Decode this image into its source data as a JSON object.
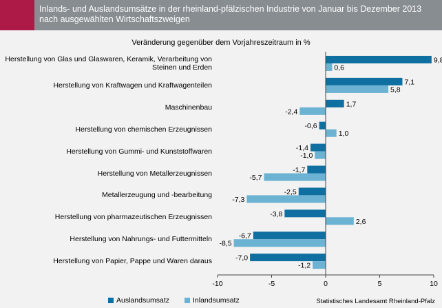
{
  "header": {
    "title_line1": "Inlands- und Auslandsumsätze in der rheinland-pfälzischen Industrie von Januar bis  Dezember 2013",
    "title_line2": "nach ausgewählten Wirtschaftszweigen"
  },
  "chart_data": {
    "type": "bar",
    "orientation": "horizontal",
    "title": "Inlands- und Auslandsumsätze in der rheinland-pfälzischen Industrie von Januar bis  Dezember 2013 nach ausgewählten Wirtschaftszweigen",
    "subtitle": "Veränderung gegenüber dem Vorjahreszeitraum  in %",
    "categories": [
      "Herstellung von Glas und Glaswaren, Keramik, Verarbeitung von Steinen und Erden",
      "Herstellung von Kraftwagen und Kraftwagenteilen",
      "Maschinenbau",
      "Herstellung von chemischen Erzeugnissen",
      "Herstellung von Gummi- und Kunststoffwaren",
      "Herstellung von Metallerzeugnissen",
      "Metallerzeugung und -bearbeitung",
      "Herstellung von pharmazeutischen Erzeugnissen",
      "Herstellung von Nahrungs- und Futtermitteln",
      "Herstellung von Papier, Pappe und Waren daraus"
    ],
    "series": [
      {
        "name": "Auslandsumsatz",
        "color": "#0f6fa0",
        "values": [
          9.8,
          7.1,
          1.7,
          -0.6,
          -1.4,
          -1.7,
          -2.5,
          -3.8,
          -6.7,
          -7.0
        ],
        "labels": [
          "9,8",
          "7,1",
          "1,7",
          "-0,6",
          "-1,4",
          "-1,7",
          "-2,5",
          "-3,8",
          "-6,7",
          "-7,0"
        ]
      },
      {
        "name": "Inlandsumsatz",
        "color": "#6cb2d3",
        "values": [
          0.6,
          5.8,
          -2.4,
          1.0,
          -1.0,
          -5.7,
          -7.3,
          2.6,
          -8.5,
          -1.2
        ],
        "labels": [
          "0,6",
          "5,8",
          "-2,4",
          "1,0",
          "-1,0",
          "-5,7",
          "-7,3",
          "2,6",
          "-8,5",
          "-1,2"
        ]
      }
    ],
    "xlim": [
      -10,
      10
    ],
    "xticks": [
      -10,
      -5,
      0,
      5,
      10
    ],
    "xtick_labels": [
      "-10",
      "-5",
      "0",
      "5",
      "10"
    ],
    "grid": false,
    "legend_position": "bottom"
  },
  "footer": {
    "source": "Statistisches Landesamt Rheinland-Pfalz"
  }
}
